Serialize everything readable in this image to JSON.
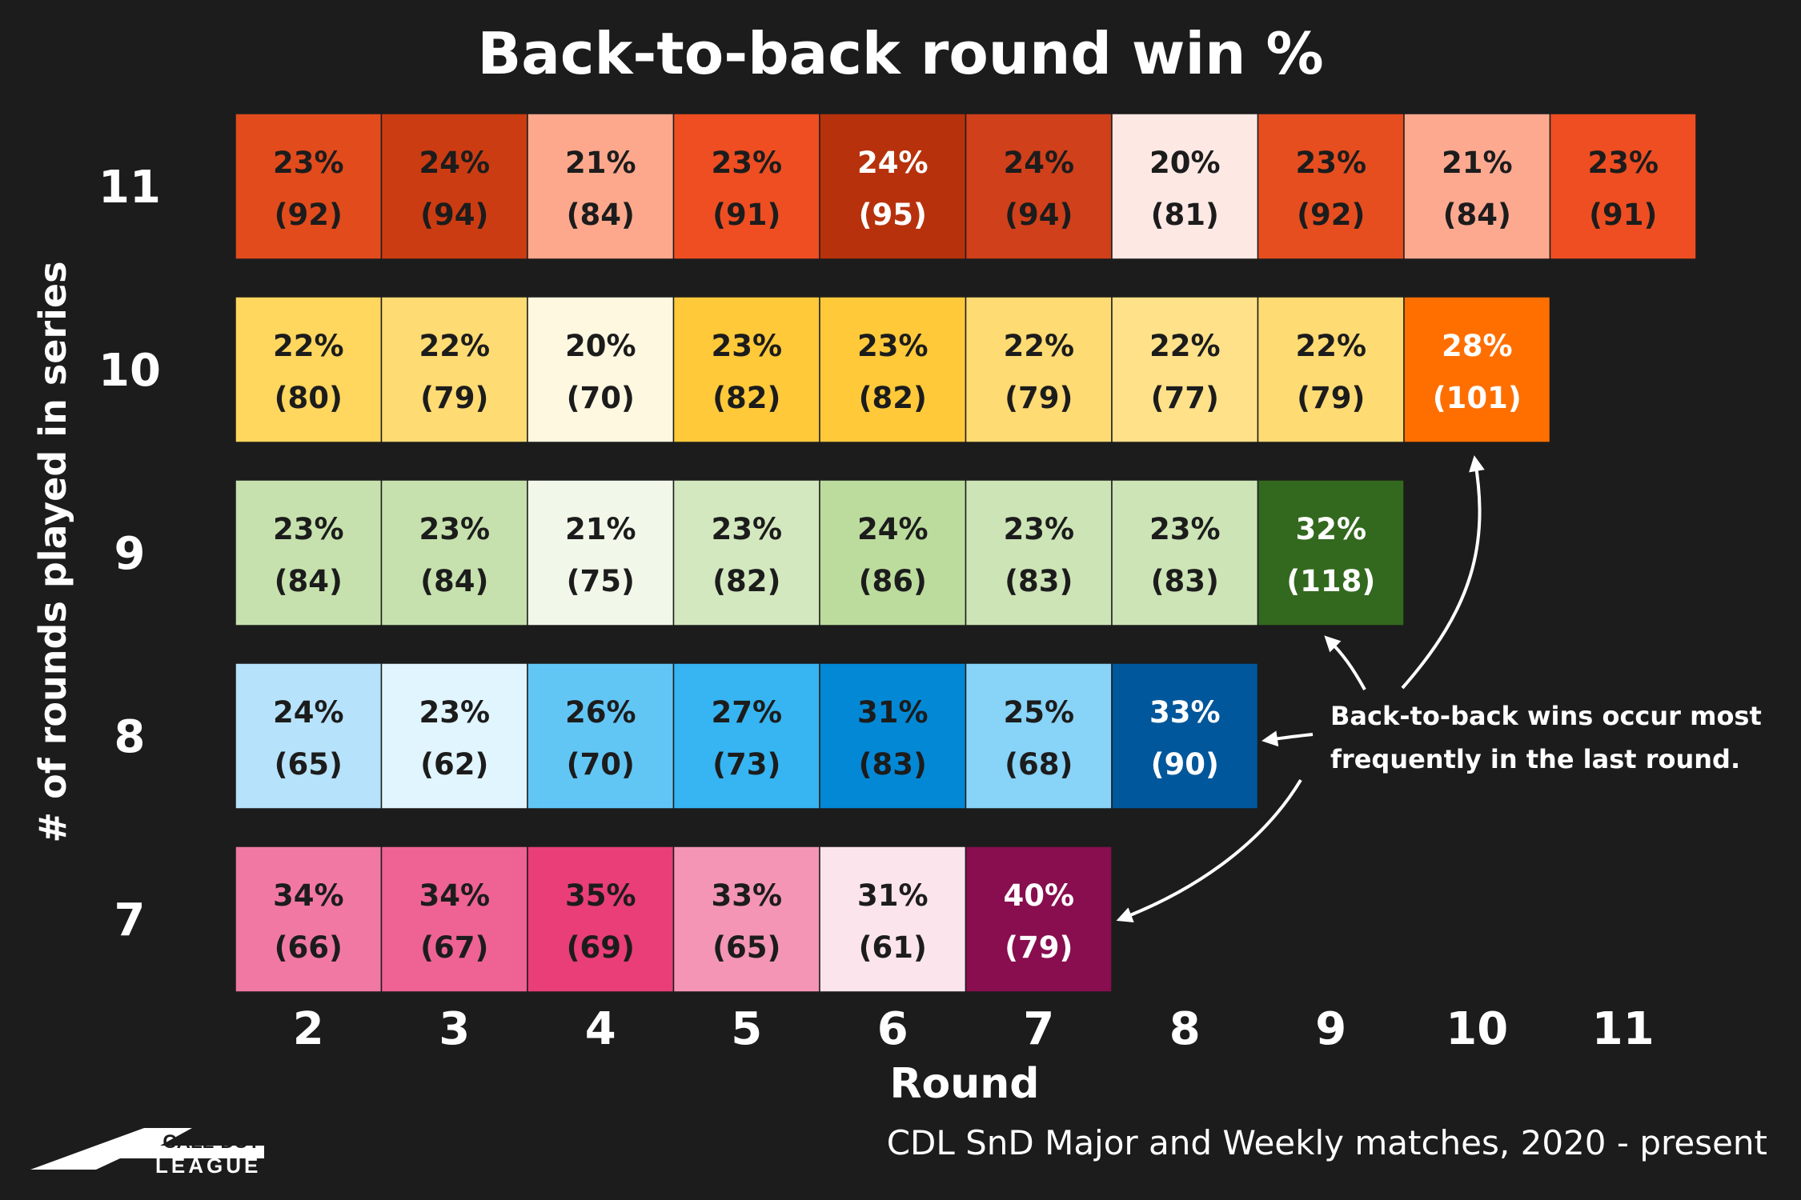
{
  "chart_data": {
    "type": "heatmap",
    "title": "Back-to-back round win %",
    "xlabel": "Round",
    "ylabel": "# of rounds played in series",
    "x_ticks": [
      "2",
      "3",
      "4",
      "5",
      "6",
      "7",
      "8",
      "9",
      "10",
      "11"
    ],
    "legend": "none",
    "grid": false,
    "rows": [
      {
        "label": "11",
        "cells": [
          {
            "pct": "23%",
            "count": "(92)"
          },
          {
            "pct": "24%",
            "count": "(94)"
          },
          {
            "pct": "21%",
            "count": "(84)"
          },
          {
            "pct": "23%",
            "count": "(91)"
          },
          {
            "pct": "24%",
            "count": "(95)"
          },
          {
            "pct": "24%",
            "count": "(94)"
          },
          {
            "pct": "20%",
            "count": "(81)"
          },
          {
            "pct": "23%",
            "count": "(92)"
          },
          {
            "pct": "21%",
            "count": "(84)"
          },
          {
            "pct": "23%",
            "count": "(91)"
          }
        ],
        "colors": [
          "#e24b1c",
          "#cc3c12",
          "#fda88c",
          "#ee4e22",
          "#b7320c",
          "#d0401b",
          "#fde8e4",
          "#e64e20",
          "#fda990",
          "#ee4e22"
        ],
        "text_colors": [
          "#1c1c1c",
          "#1c1c1c",
          "#1c1c1c",
          "#1c1c1c",
          "#ffffff",
          "#1c1c1c",
          "#1c1c1c",
          "#1c1c1c",
          "#1c1c1c",
          "#1c1c1c"
        ]
      },
      {
        "label": "10",
        "cells": [
          {
            "pct": "22%",
            "count": "(80)"
          },
          {
            "pct": "22%",
            "count": "(79)"
          },
          {
            "pct": "20%",
            "count": "(70)"
          },
          {
            "pct": "23%",
            "count": "(82)"
          },
          {
            "pct": "23%",
            "count": "(82)"
          },
          {
            "pct": "22%",
            "count": "(79)"
          },
          {
            "pct": "22%",
            "count": "(77)"
          },
          {
            "pct": "22%",
            "count": "(79)"
          },
          {
            "pct": "28%",
            "count": "(101)"
          }
        ],
        "colors": [
          "#ffd65e",
          "#ffdb73",
          "#fff8e1",
          "#ffc93a",
          "#ffc93a",
          "#ffdb73",
          "#ffe189",
          "#ffdb73",
          "#ff6f00"
        ],
        "text_colors": [
          "#1c1c1c",
          "#1c1c1c",
          "#1c1c1c",
          "#1c1c1c",
          "#1c1c1c",
          "#1c1c1c",
          "#1c1c1c",
          "#1c1c1c",
          "#ffffff"
        ]
      },
      {
        "label": "9",
        "cells": [
          {
            "pct": "23%",
            "count": "(84)"
          },
          {
            "pct": "23%",
            "count": "(84)"
          },
          {
            "pct": "21%",
            "count": "(75)"
          },
          {
            "pct": "23%",
            "count": "(82)"
          },
          {
            "pct": "24%",
            "count": "(86)"
          },
          {
            "pct": "23%",
            "count": "(83)"
          },
          {
            "pct": "23%",
            "count": "(83)"
          },
          {
            "pct": "32%",
            "count": "(118)"
          }
        ],
        "colors": [
          "#c6e1ad",
          "#c6e1ad",
          "#f1f8e9",
          "#d3e8bf",
          "#bcdc9d",
          "#cde4b6",
          "#cde4b6",
          "#33691e"
        ],
        "text_colors": [
          "#1c1c1c",
          "#1c1c1c",
          "#1c1c1c",
          "#1c1c1c",
          "#1c1c1c",
          "#1c1c1c",
          "#1c1c1c",
          "#ffffff"
        ]
      },
      {
        "label": "8",
        "cells": [
          {
            "pct": "24%",
            "count": "(65)"
          },
          {
            "pct": "23%",
            "count": "(62)"
          },
          {
            "pct": "26%",
            "count": "(70)"
          },
          {
            "pct": "27%",
            "count": "(73)"
          },
          {
            "pct": "31%",
            "count": "(83)"
          },
          {
            "pct": "25%",
            "count": "(68)"
          },
          {
            "pct": "33%",
            "count": "(90)"
          }
        ],
        "colors": [
          "#b6e3fb",
          "#e1f5fe",
          "#62c6f5",
          "#36b5f2",
          "#0388d5",
          "#88d3f8",
          "#01579b"
        ],
        "text_colors": [
          "#1c1c1c",
          "#1c1c1c",
          "#1c1c1c",
          "#1c1c1c",
          "#1c1c1c",
          "#1c1c1c",
          "#ffffff"
        ]
      },
      {
        "label": "7",
        "cells": [
          {
            "pct": "34%",
            "count": "(66)"
          },
          {
            "pct": "34%",
            "count": "(67)"
          },
          {
            "pct": "35%",
            "count": "(69)"
          },
          {
            "pct": "33%",
            "count": "(65)"
          },
          {
            "pct": "31%",
            "count": "(61)"
          },
          {
            "pct": "40%",
            "count": "(79)"
          }
        ],
        "colors": [
          "#f178a3",
          "#ee6393",
          "#e93e78",
          "#f495b6",
          "#fce4ec",
          "#880e4f"
        ],
        "text_colors": [
          "#1c1c1c",
          "#1c1c1c",
          "#1c1c1c",
          "#1c1c1c",
          "#1c1c1c",
          "#ffffff"
        ]
      }
    ],
    "annotation": [
      "Back-to-back wins occur most",
      "frequently in the last round."
    ],
    "source": "CDL SnD Major and Weekly matches, 2020 - present"
  },
  "logo": {
    "line1": "CALL·DUTY",
    "line2": "LEAGUE"
  },
  "colors": {
    "background": "#1c1c1c",
    "text": "#ffffff",
    "dark_text": "#1c1c1c"
  }
}
